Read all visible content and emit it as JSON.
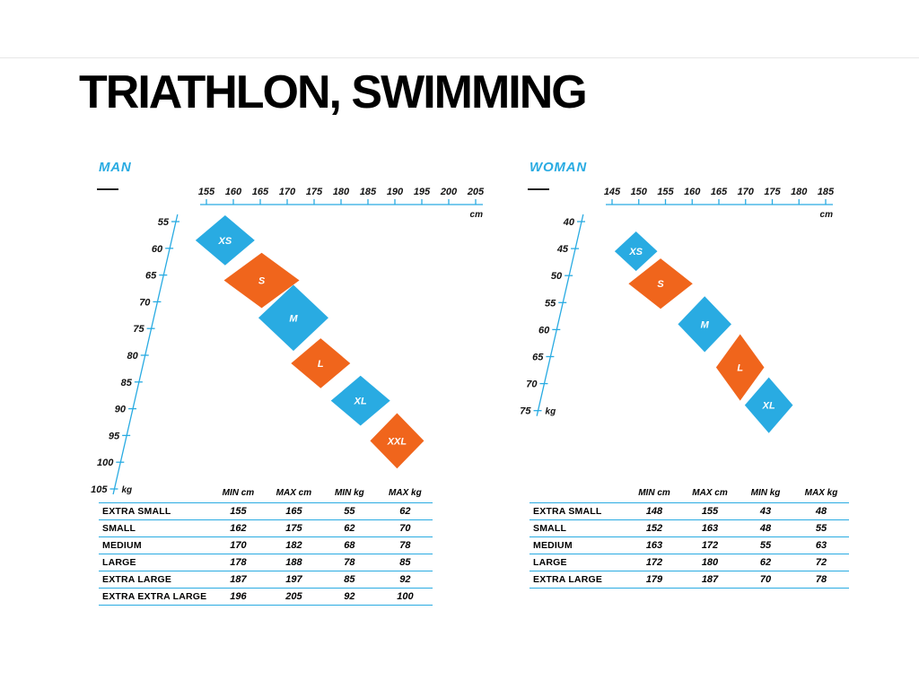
{
  "page": {
    "title": "TRIATHLON, SWIMMING"
  },
  "colors": {
    "blue": "#29ABE2",
    "orange": "#F0651C"
  },
  "chart_data": [
    {
      "type": "scatter",
      "title": "MAN",
      "x_unit": "cm",
      "y_unit": "kg",
      "x_axis_range": [
        155,
        205
      ],
      "y_axis_range": [
        55,
        105
      ],
      "x_ticks": [
        155,
        160,
        165,
        170,
        175,
        180,
        185,
        190,
        195,
        200,
        205
      ],
      "y_ticks": [
        55,
        60,
        65,
        70,
        75,
        80,
        85,
        90,
        95,
        100,
        105
      ],
      "sizes": [
        {
          "label": "XS",
          "color": "blue",
          "min_cm": 155,
          "max_cm": 165,
          "min_kg": 55,
          "max_kg": 62
        },
        {
          "label": "S",
          "color": "orange",
          "min_cm": 162,
          "max_cm": 175,
          "min_kg": 62,
          "max_kg": 70
        },
        {
          "label": "M",
          "color": "blue",
          "min_cm": 170,
          "max_cm": 182,
          "min_kg": 68,
          "max_kg": 78
        },
        {
          "label": "L",
          "color": "orange",
          "min_cm": 178,
          "max_cm": 188,
          "min_kg": 78,
          "max_kg": 85
        },
        {
          "label": "XL",
          "color": "blue",
          "min_cm": 187,
          "max_cm": 197,
          "min_kg": 85,
          "max_kg": 92
        },
        {
          "label": "XXL",
          "color": "orange",
          "min_cm": 196,
          "max_cm": 205,
          "min_kg": 92,
          "max_kg": 100
        }
      ],
      "table": {
        "headers": [
          "MIN cm",
          "MAX cm",
          "MIN kg",
          "MAX kg"
        ],
        "rows": [
          {
            "label": "EXTRA SMALL",
            "values": [
              155,
              165,
              55,
              62
            ]
          },
          {
            "label": "SMALL",
            "values": [
              162,
              175,
              62,
              70
            ]
          },
          {
            "label": "MEDIUM",
            "values": [
              170,
              182,
              68,
              78
            ]
          },
          {
            "label": "LARGE",
            "values": [
              178,
              188,
              78,
              85
            ]
          },
          {
            "label": "EXTRA LARGE",
            "values": [
              187,
              197,
              85,
              92
            ]
          },
          {
            "label": "EXTRA EXTRA LARGE",
            "values": [
              196,
              205,
              92,
              100
            ]
          }
        ]
      }
    },
    {
      "type": "scatter",
      "title": "WOMAN",
      "x_unit": "cm",
      "y_unit": "kg",
      "x_axis_range": [
        145,
        185
      ],
      "y_axis_range": [
        40,
        75
      ],
      "x_ticks": [
        145,
        150,
        155,
        160,
        165,
        170,
        175,
        180,
        185
      ],
      "y_ticks": [
        40,
        45,
        50,
        55,
        60,
        65,
        70,
        75
      ],
      "sizes": [
        {
          "label": "XS",
          "color": "blue",
          "min_cm": 148,
          "max_cm": 155,
          "min_kg": 43,
          "max_kg": 48
        },
        {
          "label": "S",
          "color": "orange",
          "min_cm": 152,
          "max_cm": 163,
          "min_kg": 48,
          "max_kg": 55
        },
        {
          "label": "M",
          "color": "blue",
          "min_cm": 163,
          "max_cm": 172,
          "min_kg": 55,
          "max_kg": 63
        },
        {
          "label": "L",
          "color": "orange",
          "min_cm": 172,
          "max_cm": 180,
          "min_kg": 62,
          "max_kg": 72
        },
        {
          "label": "XL",
          "color": "blue",
          "min_cm": 179,
          "max_cm": 187,
          "min_kg": 70,
          "max_kg": 78
        }
      ],
      "table": {
        "headers": [
          "MIN cm",
          "MAX cm",
          "MIN kg",
          "MAX kg"
        ],
        "rows": [
          {
            "label": "EXTRA SMALL",
            "values": [
              148,
              155,
              43,
              48
            ]
          },
          {
            "label": "SMALL",
            "values": [
              152,
              163,
              48,
              55
            ]
          },
          {
            "label": "MEDIUM",
            "values": [
              163,
              172,
              55,
              63
            ]
          },
          {
            "label": "LARGE",
            "values": [
              172,
              180,
              62,
              72
            ]
          },
          {
            "label": "EXTRA LARGE",
            "values": [
              179,
              187,
              70,
              78
            ]
          }
        ]
      }
    }
  ]
}
